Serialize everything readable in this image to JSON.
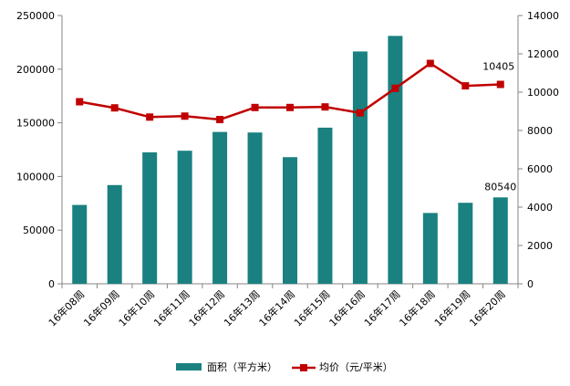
{
  "chart_data": {
    "type": "bar",
    "categories": [
      "16年08周",
      "16年09周",
      "16年10周",
      "16年11周",
      "16年12周",
      "16年13周",
      "16年14周",
      "16年15周",
      "16年16周",
      "16年17周",
      "16年18周",
      "16年19周",
      "16年20周"
    ],
    "series": [
      {
        "name": "面积（平方米）",
        "type": "bar",
        "axis": "left",
        "color": "#1a8080",
        "values": [
          73500,
          92000,
          122500,
          124000,
          141500,
          141000,
          118000,
          145500,
          216500,
          231000,
          66000,
          75500,
          80540
        ]
      },
      {
        "name": "均价（元/平米）",
        "type": "line",
        "axis": "right",
        "color": "#c00000",
        "values": [
          9500,
          9180,
          8700,
          8750,
          8570,
          9200,
          9200,
          9230,
          8920,
          10200,
          11500,
          10330,
          10405
        ]
      }
    ],
    "y_left": {
      "min": 0,
      "max": 250000,
      "ticks": [
        0,
        50000,
        100000,
        150000,
        200000,
        250000
      ]
    },
    "y_right": {
      "min": 0,
      "max": 14000,
      "ticks": [
        0,
        2000,
        4000,
        6000,
        8000,
        10000,
        12000,
        14000
      ]
    },
    "data_labels": {
      "bar_last": "80540",
      "line_last": "10405"
    },
    "legend_position": "bottom",
    "grid": false
  }
}
